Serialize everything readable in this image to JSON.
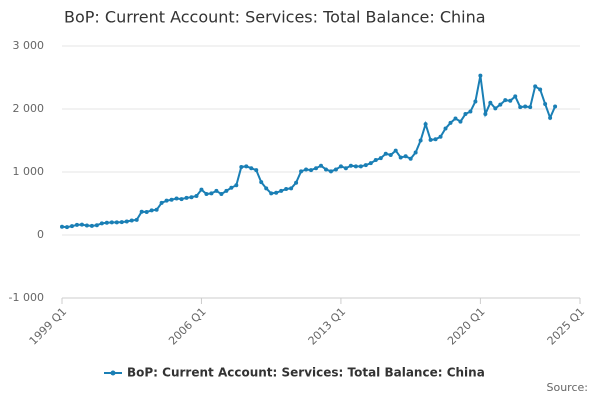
{
  "chart_data": {
    "type": "line",
    "title": "BoP: Current Account: Services: Total Balance: China",
    "source": "Source:",
    "x": [
      "1999 Q1",
      "1999 Q2",
      "1999 Q3",
      "1999 Q4",
      "2000 Q1",
      "2000 Q2",
      "2000 Q3",
      "2000 Q4",
      "2001 Q1",
      "2001 Q2",
      "2001 Q3",
      "2001 Q4",
      "2002 Q1",
      "2002 Q2",
      "2002 Q3",
      "2002 Q4",
      "2003 Q1",
      "2003 Q2",
      "2003 Q3",
      "2003 Q4",
      "2004 Q1",
      "2004 Q2",
      "2004 Q3",
      "2004 Q4",
      "2005 Q1",
      "2005 Q2",
      "2005 Q3",
      "2005 Q4",
      "2006 Q1",
      "2006 Q2",
      "2006 Q3",
      "2006 Q4",
      "2007 Q1",
      "2007 Q2",
      "2007 Q3",
      "2007 Q4",
      "2008 Q1",
      "2008 Q2",
      "2008 Q3",
      "2008 Q4",
      "2009 Q1",
      "2009 Q2",
      "2009 Q3",
      "2009 Q4",
      "2010 Q1",
      "2010 Q2",
      "2010 Q3",
      "2010 Q4",
      "2011 Q1",
      "2011 Q2",
      "2011 Q3",
      "2011 Q4",
      "2012 Q1",
      "2012 Q2",
      "2012 Q3",
      "2012 Q4",
      "2013 Q1",
      "2013 Q2",
      "2013 Q3",
      "2013 Q4",
      "2014 Q1",
      "2014 Q2",
      "2014 Q3",
      "2014 Q4",
      "2015 Q1",
      "2015 Q2",
      "2015 Q3",
      "2015 Q4",
      "2016 Q1",
      "2016 Q2",
      "2016 Q3",
      "2016 Q4",
      "2017 Q1",
      "2017 Q2",
      "2017 Q3",
      "2017 Q4",
      "2018 Q1",
      "2018 Q2",
      "2018 Q3",
      "2018 Q4",
      "2019 Q1",
      "2019 Q2",
      "2019 Q3",
      "2019 Q4",
      "2020 Q1",
      "2020 Q2",
      "2020 Q3",
      "2020 Q4",
      "2021 Q1",
      "2021 Q2",
      "2021 Q3",
      "2021 Q4",
      "2022 Q1",
      "2022 Q2",
      "2022 Q3",
      "2022 Q4",
      "2023 Q1",
      "2023 Q2",
      "2023 Q3",
      "2023 Q4"
    ],
    "series": [
      {
        "name": "BoP: Current Account: Services: Total Balance: China",
        "color": "#1a7fb5",
        "values": [
          130,
          125,
          140,
          160,
          165,
          150,
          145,
          155,
          185,
          195,
          200,
          200,
          205,
          215,
          230,
          240,
          370,
          365,
          390,
          400,
          510,
          545,
          560,
          580,
          570,
          590,
          600,
          620,
          720,
          650,
          660,
          700,
          650,
          700,
          750,
          790,
          1080,
          1090,
          1060,
          1030,
          840,
          740,
          660,
          670,
          700,
          730,
          740,
          830,
          1010,
          1040,
          1030,
          1060,
          1100,
          1040,
          1010,
          1040,
          1090,
          1060,
          1100,
          1090,
          1090,
          1110,
          1140,
          1190,
          1220,
          1290,
          1270,
          1340,
          1230,
          1250,
          1210,
          1310,
          1500,
          1760,
          1510,
          1520,
          1560,
          1690,
          1780,
          1850,
          1800,
          1920,
          1960,
          2120,
          2530,
          1920,
          2100,
          2010,
          2070,
          2140,
          2130,
          2200,
          2030,
          2040,
          2030,
          2360,
          2310,
          2080,
          1860,
          2040
        ]
      }
    ],
    "xticks": [
      "1999 Q1",
      "2006 Q1",
      "2013 Q1",
      "2020 Q1",
      "2025 Q1"
    ],
    "ylim": [
      -1000,
      3000
    ],
    "yticks": [
      {
        "value": -1000,
        "label": "-1 000"
      },
      0,
      {
        "value": 1000,
        "label": "1 000"
      },
      {
        "value": 2000,
        "label": "2 000"
      },
      {
        "value": 3000,
        "label": "3 000"
      }
    ],
    "grid": true,
    "legend": "bottom"
  }
}
